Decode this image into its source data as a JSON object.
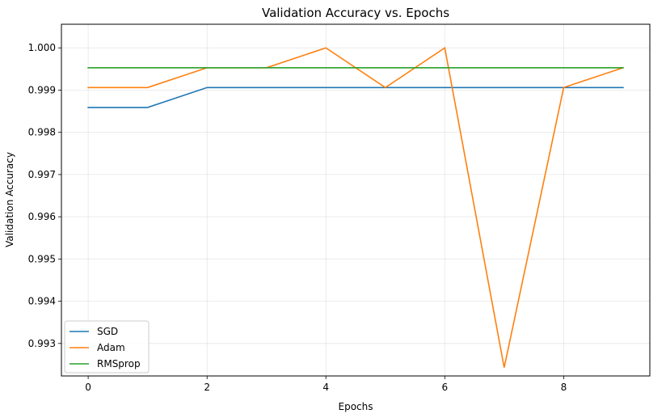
{
  "chart_data": {
    "type": "line",
    "title": "Validation Accuracy vs. Epochs",
    "xlabel": "Epochs",
    "ylabel": "Validation Accuracy",
    "x": [
      0,
      1,
      2,
      3,
      4,
      5,
      6,
      7,
      8,
      9
    ],
    "xlim": [
      -0.45,
      9.45
    ],
    "ylim": [
      0.99223,
      1.00056
    ],
    "xticks": [
      0,
      2,
      4,
      6,
      8
    ],
    "yticks": [
      0.993,
      0.994,
      0.995,
      0.996,
      0.997,
      0.998,
      0.999,
      1.0
    ],
    "ytick_labels": [
      "0.993",
      "0.994",
      "0.995",
      "0.996",
      "0.997",
      "0.998",
      "0.999",
      "1.000"
    ],
    "grid": true,
    "legend_position": "lower-left",
    "series": [
      {
        "name": "SGD",
        "color": "#1f77b4",
        "values": [
          0.99859,
          0.99859,
          0.99906,
          0.99906,
          0.99906,
          0.99906,
          0.99906,
          0.99906,
          0.99906,
          0.99906
        ]
      },
      {
        "name": "Adam",
        "color": "#ff7f0e",
        "values": [
          0.99906,
          0.99906,
          0.99953,
          0.99953,
          1.0,
          0.99906,
          1.0,
          0.99243,
          0.99906,
          0.99953
        ]
      },
      {
        "name": "RMSprop",
        "color": "#2ca02c",
        "values": [
          0.99953,
          0.99953,
          0.99953,
          0.99953,
          0.99953,
          0.99953,
          0.99953,
          0.99953,
          0.99953,
          0.99953
        ]
      }
    ]
  }
}
